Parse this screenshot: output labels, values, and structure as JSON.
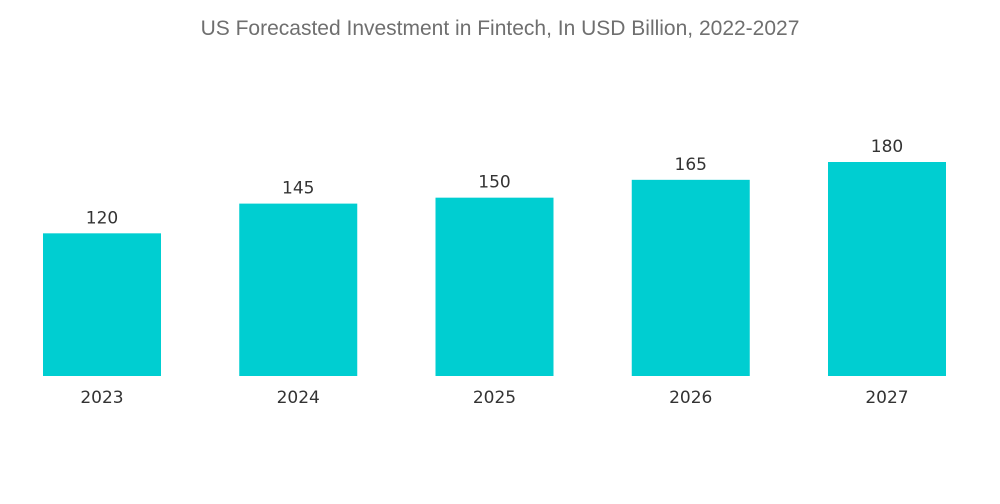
{
  "chart_data": {
    "type": "bar",
    "title": "US Forecasted Investment in Fintech, In USD Billion, 2022-2027",
    "xlabel": "",
    "ylabel": "",
    "categories": [
      "2023",
      "2024",
      "2025",
      "2026",
      "2027"
    ],
    "values": [
      120,
      145,
      150,
      165,
      180
    ],
    "ylim": [
      0,
      180
    ],
    "grid": false,
    "legend": "none",
    "bar_color": "#00ced1"
  }
}
